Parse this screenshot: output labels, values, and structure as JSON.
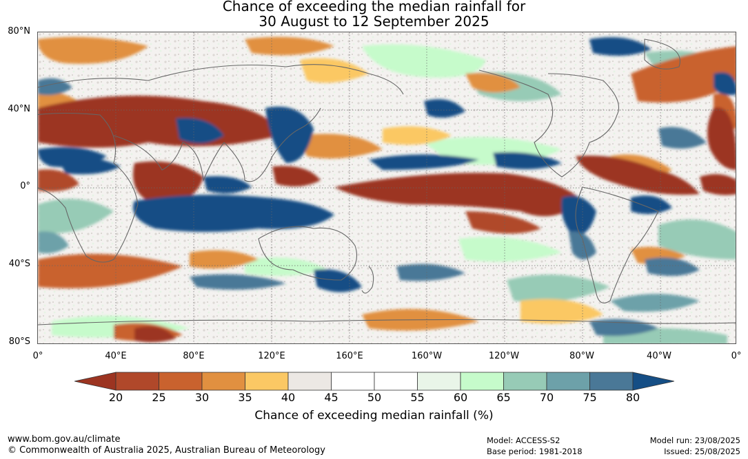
{
  "title": {
    "line1": "Chance of exceeding the median rainfall for",
    "line2": "30 August to 12 September 2025"
  },
  "lat_labels": [
    "80°N",
    "40°N",
    "0°",
    "40°S",
    "80°S"
  ],
  "lon_labels": [
    "0°",
    "40°E",
    "80°E",
    "120°E",
    "160°E",
    "160°W",
    "120°W",
    "80°W",
    "40°W",
    "0°"
  ],
  "legend": {
    "ticks": [
      "20",
      "25",
      "30",
      "35",
      "40",
      "45",
      "50",
      "55",
      "60",
      "65",
      "70",
      "75",
      "80"
    ],
    "colors": [
      "#9c3421",
      "#b0482a",
      "#c9622e",
      "#e19040",
      "#fbc864",
      "#ece8e4",
      "#ffffff",
      "#ffffff",
      "#e9f5e8",
      "#c6fbcb",
      "#97cbb6",
      "#6da1a9",
      "#4a7897",
      "#154e85"
    ],
    "label": "Chance of exceeding median rainfall (%)"
  },
  "footer": {
    "url": "www.bom.gov.au/climate",
    "copyright": "© Commonwealth of Australia 2025, Australian Bureau of Meteorology",
    "model": "Model: ACCESS-S2",
    "base_period": "Base period: 1981-2018",
    "model_run": "Model run: 23/08/2025",
    "issued": "Issued: 25/08/2025"
  }
}
